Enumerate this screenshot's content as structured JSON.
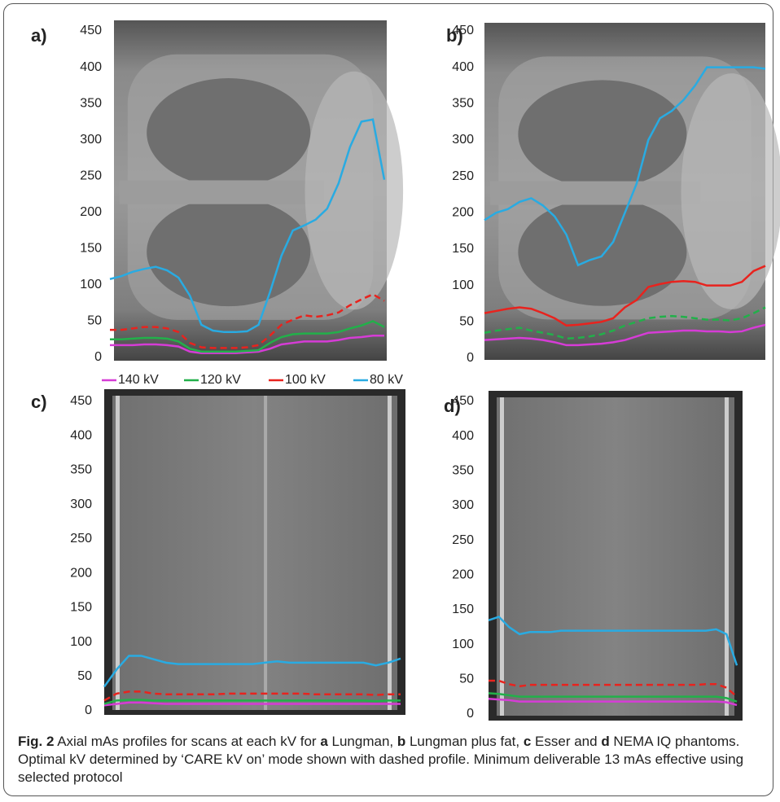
{
  "chart_data": [
    {
      "type": "line",
      "panel_label": "a)",
      "ylim": [
        0,
        450
      ],
      "yticks": [
        0,
        50,
        100,
        150,
        200,
        250,
        300,
        350,
        400,
        450
      ],
      "legend": true,
      "series": [
        {
          "name": "140 kV",
          "color": "#d63cd6",
          "values": [
            17,
            17,
            17,
            18,
            18,
            17,
            15,
            8,
            6,
            6,
            6,
            6,
            7,
            8,
            12,
            18,
            20,
            22,
            22,
            22,
            24,
            27,
            28,
            30,
            30
          ]
        },
        {
          "name": "120 kV",
          "color": "#22b04a",
          "values": [
            25,
            25,
            26,
            27,
            27,
            26,
            22,
            12,
            8,
            8,
            8,
            8,
            9,
            10,
            20,
            28,
            32,
            33,
            33,
            33,
            35,
            40,
            44,
            50,
            42
          ]
        },
        {
          "name": "100 kV",
          "color": "#e8231e",
          "dashed": true,
          "values": [
            38,
            38,
            40,
            42,
            42,
            40,
            35,
            20,
            14,
            13,
            13,
            13,
            14,
            17,
            30,
            45,
            52,
            58,
            56,
            58,
            62,
            72,
            80,
            87,
            78
          ]
        },
        {
          "name": "80 kV",
          "color": "#29abe2",
          "values": [
            108,
            112,
            118,
            122,
            125,
            120,
            110,
            85,
            45,
            37,
            35,
            35,
            36,
            45,
            90,
            140,
            175,
            182,
            190,
            205,
            240,
            290,
            325,
            328,
            245
          ]
        }
      ]
    },
    {
      "type": "line",
      "panel_label": "b)",
      "ylim": [
        0,
        450
      ],
      "yticks": [
        0,
        50,
        100,
        150,
        200,
        250,
        300,
        350,
        400,
        450
      ],
      "series": [
        {
          "color": "#d63cd6",
          "values": [
            25,
            26,
            27,
            28,
            27,
            25,
            22,
            18,
            18,
            19,
            20,
            22,
            25,
            30,
            35,
            36,
            37,
            38,
            38,
            37,
            37,
            36,
            37,
            42,
            46
          ]
        },
        {
          "color": "#22b04a",
          "dashed": true,
          "values": [
            35,
            38,
            40,
            42,
            38,
            35,
            32,
            27,
            28,
            30,
            33,
            38,
            45,
            50,
            55,
            57,
            58,
            57,
            55,
            53,
            53,
            52,
            55,
            62,
            70
          ]
        },
        {
          "color": "#e8231e",
          "values": [
            62,
            65,
            68,
            70,
            68,
            62,
            55,
            45,
            46,
            48,
            50,
            55,
            70,
            80,
            98,
            102,
            105,
            106,
            105,
            100,
            100,
            100,
            105,
            120,
            127
          ]
        },
        {
          "color": "#29abe2",
          "values": [
            190,
            200,
            205,
            215,
            220,
            210,
            195,
            170,
            128,
            135,
            140,
            160,
            200,
            240,
            300,
            330,
            340,
            355,
            375,
            400,
            400,
            400,
            400,
            400,
            398
          ]
        }
      ]
    },
    {
      "type": "line",
      "panel_label": "c)",
      "ylim": [
        0,
        450
      ],
      "yticks": [
        0,
        50,
        100,
        150,
        200,
        250,
        300,
        350,
        400,
        450
      ],
      "series": [
        {
          "color": "#d63cd6",
          "values": [
            8,
            10,
            12,
            12,
            11,
            10,
            10,
            10,
            10,
            10,
            10,
            10,
            10,
            10,
            10,
            10,
            10,
            10,
            10,
            10,
            10,
            10,
            10,
            10,
            10
          ]
        },
        {
          "color": "#22b04a",
          "values": [
            10,
            15,
            16,
            16,
            15,
            15,
            15,
            15,
            15,
            15,
            15,
            15,
            15,
            15,
            15,
            15,
            15,
            15,
            15,
            15,
            15,
            15,
            14,
            15,
            15
          ]
        },
        {
          "color": "#e8231e",
          "dashed": true,
          "values": [
            15,
            25,
            28,
            28,
            25,
            24,
            24,
            24,
            24,
            24,
            25,
            25,
            25,
            25,
            25,
            25,
            25,
            24,
            24,
            24,
            24,
            24,
            23,
            24,
            24
          ]
        },
        {
          "color": "#29abe2",
          "values": [
            35,
            60,
            80,
            80,
            75,
            70,
            68,
            68,
            68,
            68,
            68,
            68,
            68,
            70,
            72,
            70,
            70,
            70,
            70,
            70,
            70,
            70,
            66,
            70,
            76
          ]
        }
      ]
    },
    {
      "type": "line",
      "panel_label": "d)",
      "ylim": [
        0,
        450
      ],
      "yticks": [
        0,
        50,
        100,
        150,
        200,
        250,
        300,
        350,
        400,
        450
      ],
      "series": [
        {
          "color": "#d63cd6",
          "values": [
            22,
            21,
            20,
            18,
            18,
            18,
            18,
            18,
            18,
            18,
            18,
            18,
            18,
            18,
            18,
            18,
            18,
            18,
            18,
            18,
            18,
            18,
            18,
            17,
            13
          ]
        },
        {
          "color": "#22b04a",
          "values": [
            30,
            29,
            27,
            25,
            25,
            25,
            25,
            25,
            25,
            25,
            25,
            25,
            25,
            25,
            25,
            25,
            25,
            25,
            25,
            25,
            25,
            25,
            25,
            23,
            18
          ]
        },
        {
          "color": "#e8231e",
          "dashed": true,
          "values": [
            48,
            48,
            43,
            40,
            42,
            42,
            42,
            42,
            42,
            42,
            42,
            42,
            42,
            42,
            42,
            42,
            42,
            42,
            42,
            42,
            42,
            43,
            43,
            38,
            25
          ]
        },
        {
          "color": "#29abe2",
          "values": [
            135,
            140,
            125,
            115,
            118,
            118,
            118,
            120,
            120,
            120,
            120,
            120,
            120,
            120,
            120,
            120,
            120,
            120,
            120,
            120,
            120,
            120,
            122,
            115,
            70
          ]
        }
      ]
    }
  ],
  "caption": {
    "label": "Fig. 2",
    "parts": [
      " Axial mAs profiles for scans at each kV for ",
      "a",
      " Lungman, ",
      "b",
      " Lungman plus fat, ",
      "c",
      " Esser and ",
      "d",
      " NEMA IQ phantoms. Optimal kV determined by ‘CARE kV on’ mode shown with dashed profile. Minimum deliverable 13 mAs effective using selected protocol"
    ]
  }
}
